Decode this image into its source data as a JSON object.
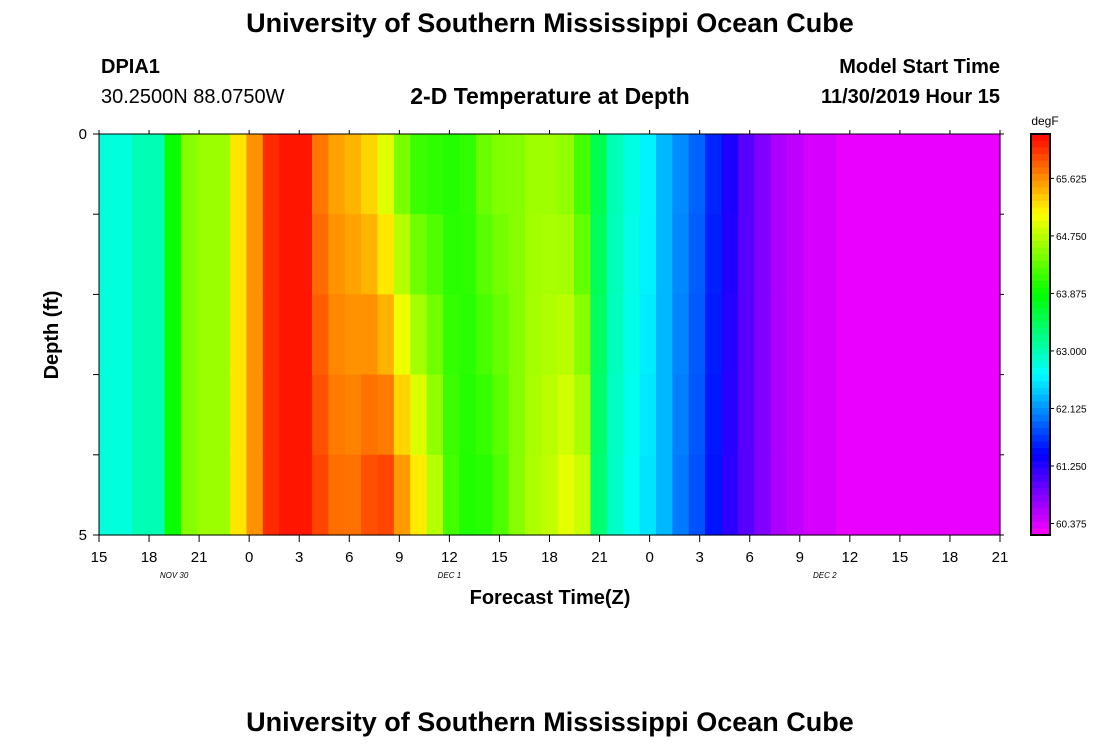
{
  "header": {
    "title": "University of Southern Mississippi Ocean Cube",
    "station_id": "DPIA1",
    "coordinates": "30.2500N 88.0750W",
    "plot_title": "2-D Temperature at Depth",
    "model_label": "Model Start Time",
    "model_time": "11/30/2019 Hour 15"
  },
  "footer": {
    "title": "University of Southern Mississippi Ocean Cube"
  },
  "chart_data": {
    "type": "heatmap",
    "title": "2-D Temperature at Depth",
    "xlabel": "Forecast Time(Z)",
    "ylabel": "Depth (ft)",
    "x_tick_labels": [
      "15",
      "18",
      "21",
      "0",
      "3",
      "6",
      "9",
      "12",
      "15",
      "18",
      "21",
      "0",
      "3",
      "6",
      "9",
      "12",
      "15",
      "18",
      "21"
    ],
    "y_tick_labels": [
      "0",
      "5"
    ],
    "date_labels": [
      "NOV 30",
      "DEC 1",
      "DEC 2"
    ],
    "x_hours_from_start": [
      0,
      3,
      6,
      9,
      12,
      15,
      18,
      21,
      24,
      27,
      30,
      33,
      36,
      39,
      42,
      45,
      48,
      51,
      54
    ],
    "date_label_hours": [
      4.5,
      21,
      43.5
    ],
    "ylim": [
      0,
      5
    ],
    "colorbar": {
      "unit": "degF",
      "ticks": [
        "65.625",
        "64.750",
        "63.875",
        "63.000",
        "62.125",
        "61.250",
        "60.375"
      ],
      "tick_values": [
        65.625,
        64.75,
        63.875,
        63.0,
        62.125,
        61.25,
        60.375
      ],
      "min": 60.2,
      "max": 66.3
    },
    "surface_temperature": [
      62.8,
      62.8,
      63.0,
      63.0,
      63.9,
      64.5,
      64.6,
      64.6,
      65.2,
      65.6,
      66.1,
      66.2,
      66.2,
      65.7,
      65.5,
      65.4,
      65.2,
      64.8,
      64.3,
      64.0,
      64.0,
      64.0,
      64.1,
      64.4,
      64.5,
      64.5,
      64.6,
      64.6,
      64.5,
      64.1,
      63.5,
      63.0,
      62.8,
      62.6,
      62.3,
      62.1,
      61.9,
      61.6,
      61.3,
      61.0,
      60.8,
      60.6,
      60.5,
      60.4,
      60.4,
      60.3,
      60.3,
      60.3,
      60.3,
      60.3,
      60.3,
      60.3,
      60.3,
      60.3,
      60.3
    ],
    "bottom_temperature": [
      62.8,
      62.8,
      63.0,
      63.0,
      63.9,
      64.5,
      64.6,
      64.6,
      65.2,
      65.6,
      66.1,
      66.2,
      66.2,
      66.0,
      65.8,
      65.8,
      66.0,
      66.1,
      65.7,
      65.3,
      64.8,
      64.2,
      64.0,
      64.0,
      64.2,
      64.5,
      64.7,
      64.8,
      65.0,
      64.9,
      63.3,
      62.9,
      62.7,
      62.5,
      62.3,
      62.0,
      61.8,
      61.5,
      61.2,
      61.0,
      60.8,
      60.6,
      60.5,
      60.4,
      60.4,
      60.3,
      60.3,
      60.3,
      60.3,
      60.3,
      60.3,
      60.3,
      60.3,
      60.3,
      60.3
    ]
  }
}
